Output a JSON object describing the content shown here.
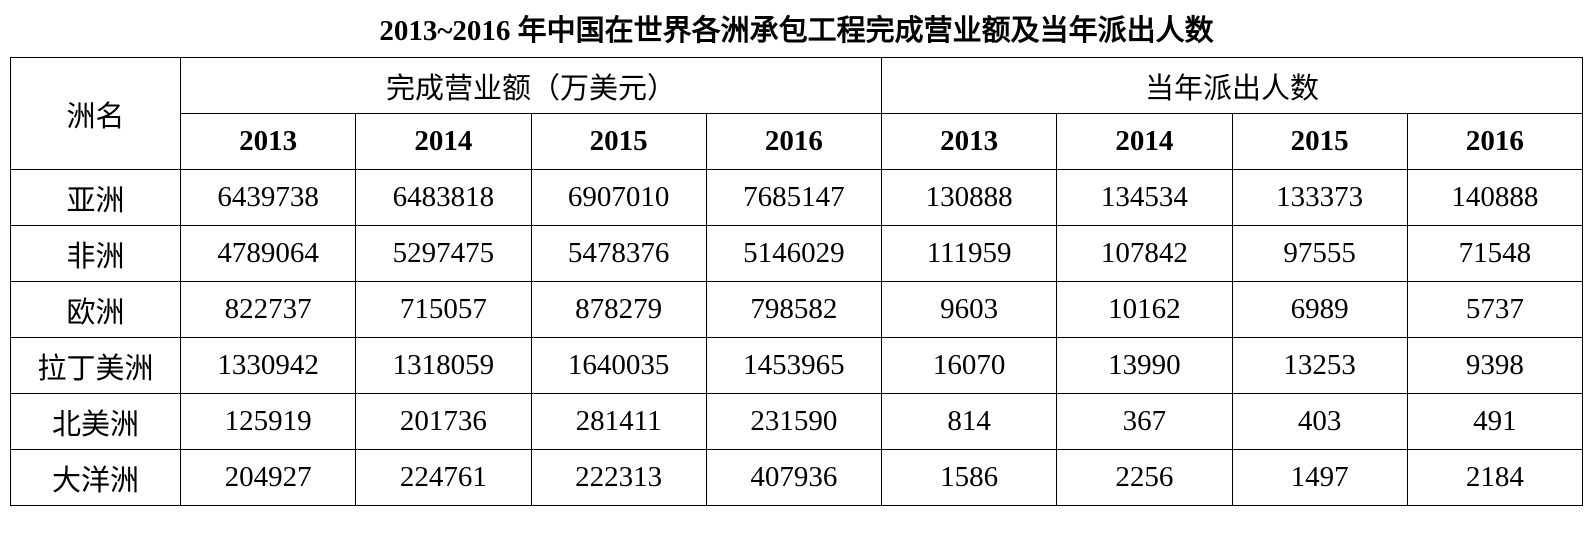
{
  "title": "2013~2016 年中国在世界各洲承包工程完成营业额及当年派出人数",
  "table": {
    "corner": "洲名",
    "groups": [
      {
        "label": "完成营业额（万美元）",
        "years": [
          "2013",
          "2014",
          "2015",
          "2016"
        ]
      },
      {
        "label": "当年派出人数",
        "years": [
          "2013",
          "2014",
          "2015",
          "2016"
        ]
      }
    ],
    "rows": [
      {
        "name": "亚洲",
        "values": [
          6439738,
          6483818,
          6907010,
          7685147,
          130888,
          134534,
          133373,
          140888
        ]
      },
      {
        "name": "非洲",
        "values": [
          4789064,
          5297475,
          5478376,
          5146029,
          111959,
          107842,
          97555,
          71548
        ]
      },
      {
        "name": "欧洲",
        "values": [
          822737,
          715057,
          878279,
          798582,
          9603,
          10162,
          6989,
          5737
        ]
      },
      {
        "name": "拉丁美洲",
        "values": [
          1330942,
          1318059,
          1640035,
          1453965,
          16070,
          13990,
          13253,
          9398
        ]
      },
      {
        "name": "北美洲",
        "values": [
          125919,
          201736,
          281411,
          231590,
          814,
          367,
          403,
          491
        ]
      },
      {
        "name": "大洋洲",
        "values": [
          204927,
          224761,
          222313,
          407936,
          1586,
          2256,
          1497,
          2184
        ]
      }
    ]
  }
}
